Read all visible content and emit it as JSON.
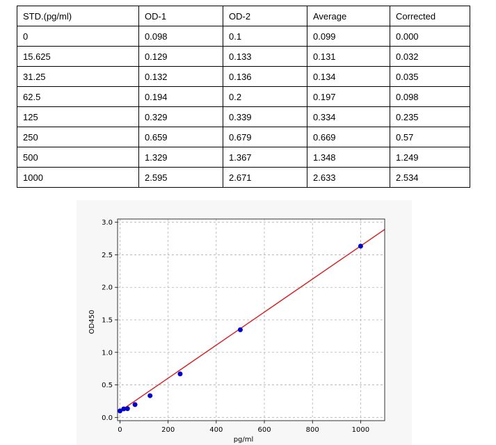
{
  "table": {
    "header": [
      "STD.(pg/ml)",
      "OD-1",
      "OD-2",
      "Average",
      "Corrected"
    ],
    "rows": [
      [
        "0",
        "0.098",
        "0.1",
        "0.099",
        "0.000"
      ],
      [
        "15.625",
        "0.129",
        "0.133",
        "0.131",
        "0.032"
      ],
      [
        "31.25",
        "0.132",
        "0.136",
        "0.134",
        "0.035"
      ],
      [
        "62.5",
        "0.194",
        "0.2",
        "0.197",
        "0.098"
      ],
      [
        "125",
        "0.329",
        "0.339",
        "0.334",
        "0.235"
      ],
      [
        "250",
        "0.659",
        "0.679",
        "0.669",
        "0.57"
      ],
      [
        "500",
        "1.329",
        "1.367",
        "1.348",
        "1.249"
      ],
      [
        "1000",
        "2.595",
        "2.671",
        "2.633",
        "2.534"
      ]
    ]
  },
  "chart_data": {
    "type": "scatter",
    "title": "",
    "xlabel": "pg/ml",
    "ylabel": "OD450",
    "xlim": [
      -10,
      1100
    ],
    "ylim": [
      -0.05,
      3.05
    ],
    "xticks": [
      0,
      200,
      400,
      600,
      800,
      1000
    ],
    "yticks": [
      0.0,
      0.5,
      1.0,
      1.5,
      2.0,
      2.5,
      3.0
    ],
    "xtick_labels": [
      "0",
      "200",
      "400",
      "600",
      "800",
      "1000"
    ],
    "ytick_labels": [
      "0.0",
      "0.5",
      "1.0",
      "1.5",
      "2.0",
      "2.5",
      "3.0"
    ],
    "grid": true,
    "series": [
      {
        "type": "scatter",
        "color": "#0000cc",
        "x": [
          0,
          15.625,
          31.25,
          62.5,
          125,
          250,
          500,
          1000
        ],
        "y": [
          0.099,
          0.131,
          0.134,
          0.197,
          0.334,
          0.669,
          1.348,
          2.633
        ]
      },
      {
        "type": "line",
        "color": "#d62728",
        "x": [
          0,
          1100
        ],
        "y": [
          0.095,
          2.89
        ]
      }
    ]
  }
}
